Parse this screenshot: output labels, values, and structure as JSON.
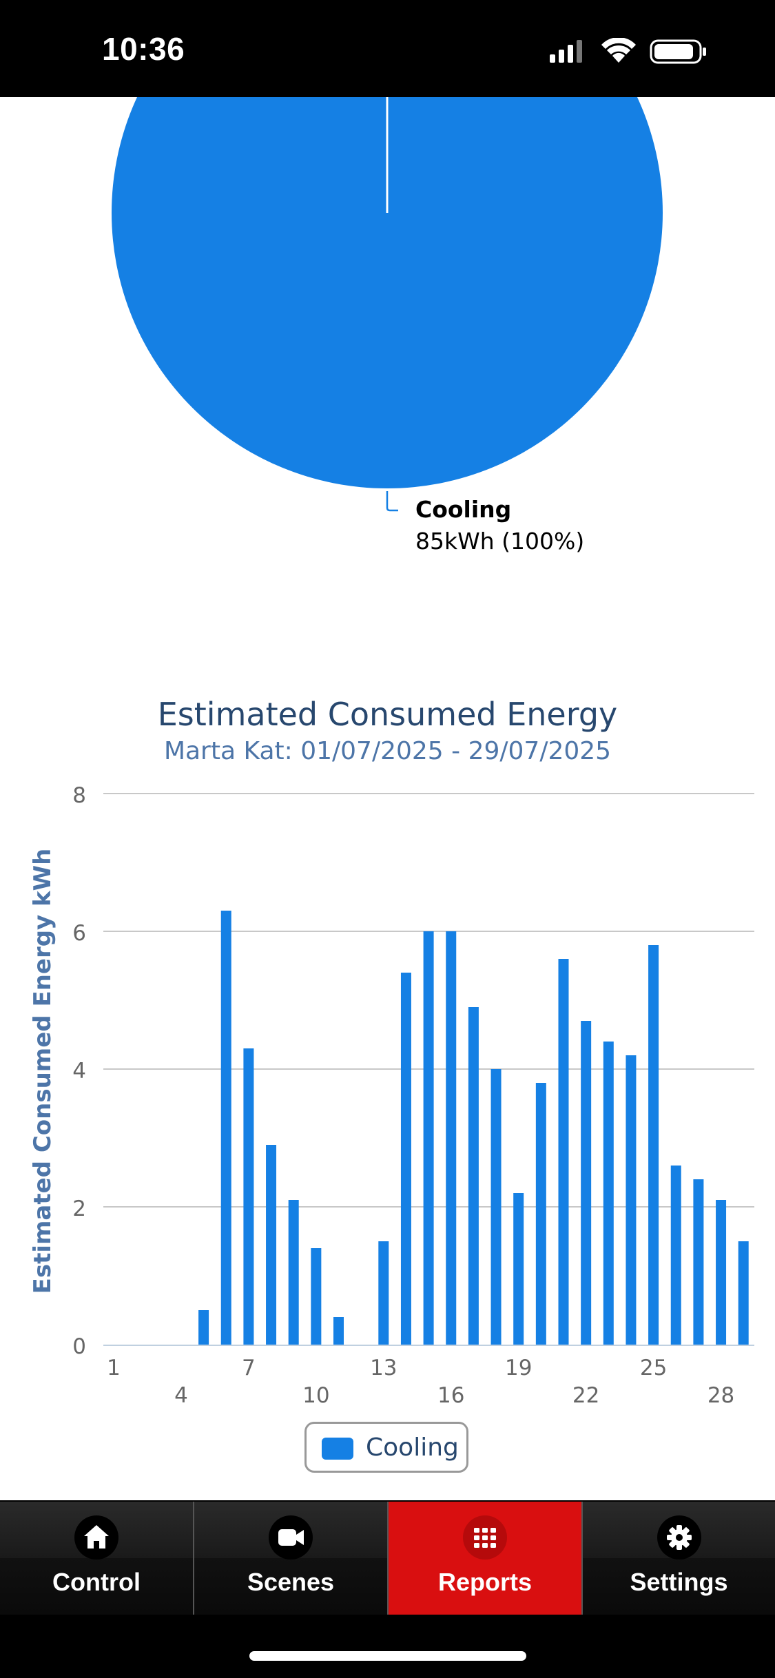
{
  "status_bar": {
    "time": "10:36"
  },
  "pie_chart": {
    "series_name": "Cooling",
    "value_label": "85kWh (100%)",
    "color": "#1580e4"
  },
  "chart_data": {
    "type": "bar",
    "title": "Estimated Consumed Energy",
    "subtitle": "Marta Kat: 01/07/2025 - 29/07/2025",
    "xlabel": "",
    "ylabel": "Estimated Consumed Energy kWh",
    "ylim": [
      0,
      8
    ],
    "yticks": [
      0,
      2,
      4,
      6,
      8
    ],
    "x_tick_labels_top": [
      "1",
      "7",
      "13",
      "19",
      "25"
    ],
    "x_tick_labels_bottom": [
      "4",
      "10",
      "16",
      "22",
      "28"
    ],
    "x": [
      1,
      2,
      3,
      4,
      5,
      6,
      7,
      8,
      9,
      10,
      11,
      12,
      13,
      14,
      15,
      16,
      17,
      18,
      19,
      20,
      21,
      22,
      23,
      24,
      25,
      26,
      27,
      28,
      29
    ],
    "series": [
      {
        "name": "Cooling",
        "color": "#1580e4",
        "values": [
          0,
          0,
          0,
          0,
          0.5,
          6.3,
          4.3,
          2.9,
          2.1,
          1.4,
          0.4,
          0,
          1.5,
          5.4,
          6.0,
          6.0,
          4.9,
          4.0,
          2.2,
          3.8,
          5.6,
          4.7,
          4.4,
          4.2,
          5.8,
          2.6,
          2.4,
          2.1,
          1.5
        ]
      }
    ],
    "grid": true,
    "legend": "bottom-center"
  },
  "legend": {
    "label": "Cooling"
  },
  "tabbar": {
    "tabs": [
      {
        "label": "Control",
        "icon": "home-icon",
        "active": false
      },
      {
        "label": "Scenes",
        "icon": "video-camera-icon",
        "active": false
      },
      {
        "label": "Reports",
        "icon": "grid-icon",
        "active": true
      },
      {
        "label": "Settings",
        "icon": "gear-icon",
        "active": false
      }
    ],
    "active_color": "#d90f10"
  }
}
